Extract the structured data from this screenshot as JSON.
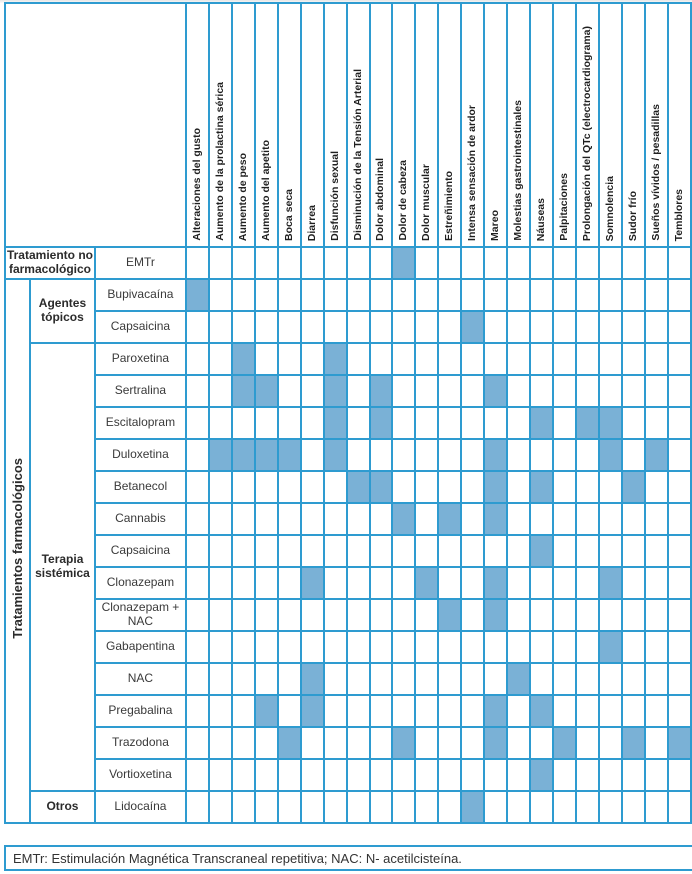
{
  "colors": {
    "grid_border": "#2e9bd0",
    "cell_fill": "#7ab1d6",
    "text": "#333333"
  },
  "chart_data": {
    "type": "heatmap",
    "title": "",
    "side_label": "Tratamientos farmacológicos",
    "columns": [
      "Alteraciones del gusto",
      "Aumento de la prolactina sérica",
      "Aumento de peso",
      "Aumento del apetito",
      "Boca seca",
      "Diarrea",
      "Disfunción sexual",
      "Disminución de la Tensión Arterial",
      "Dolor abdominal",
      "Dolor de cabeza",
      "Dolor muscular",
      "Estreñimiento",
      "Intensa sensación de ardor",
      "Mareo",
      "Molestias gastrointestinales",
      "Náuseas",
      "Palpitaciones",
      "Prolongación del QTc (electrocardiograma)",
      "Somnolencia",
      "Sudor frío",
      "Sueños vívidos / pesadillas",
      "Temblores"
    ],
    "groups": [
      {
        "label": "Tratamiento no farmacológico",
        "rows": 1,
        "full_width": true
      },
      {
        "label": "Agentes tópicos",
        "rows": 2,
        "full_width": false
      },
      {
        "label": "Terapia sistémica",
        "rows": 14,
        "full_width": false
      },
      {
        "label": "Otros",
        "rows": 1,
        "full_width": false
      }
    ],
    "rows": [
      {
        "treatment": "EMTr",
        "filled": [
          10
        ]
      },
      {
        "treatment": "Bupivacaína",
        "filled": [
          1
        ]
      },
      {
        "treatment": "Capsaicina",
        "filled": [
          13
        ]
      },
      {
        "treatment": "Paroxetina",
        "filled": [
          3,
          7
        ]
      },
      {
        "treatment": "Sertralina",
        "filled": [
          3,
          4,
          7,
          9,
          14
        ]
      },
      {
        "treatment": "Escitalopram",
        "filled": [
          7,
          9,
          16,
          18,
          19
        ]
      },
      {
        "treatment": "Duloxetina",
        "filled": [
          2,
          3,
          4,
          5,
          7,
          14,
          19,
          21
        ]
      },
      {
        "treatment": "Betanecol",
        "filled": [
          8,
          9,
          14,
          16,
          20
        ]
      },
      {
        "treatment": "Cannabis",
        "filled": [
          10,
          12,
          14
        ]
      },
      {
        "treatment": "Capsaicina",
        "filled": [
          16
        ]
      },
      {
        "treatment": "Clonazepam",
        "filled": [
          6,
          11,
          14,
          19
        ]
      },
      {
        "treatment": "Clonazepam + NAC",
        "filled": [
          12,
          14
        ]
      },
      {
        "treatment": "Gabapentina",
        "filled": [
          19
        ]
      },
      {
        "treatment": "NAC",
        "filled": [
          6,
          15
        ]
      },
      {
        "treatment": "Pregabalina",
        "filled": [
          4,
          6,
          14,
          16
        ]
      },
      {
        "treatment": "Trazodona",
        "filled": [
          5,
          10,
          14,
          17,
          20,
          22
        ]
      },
      {
        "treatment": "Vortioxetina",
        "filled": [
          16
        ]
      },
      {
        "treatment": "Lidocaína",
        "filled": [
          13
        ]
      }
    ]
  },
  "footnote": {
    "text": "EMTr: Estimulación Magnética Transcraneal repetitiva; NAC: N- acetilcisteína."
  }
}
